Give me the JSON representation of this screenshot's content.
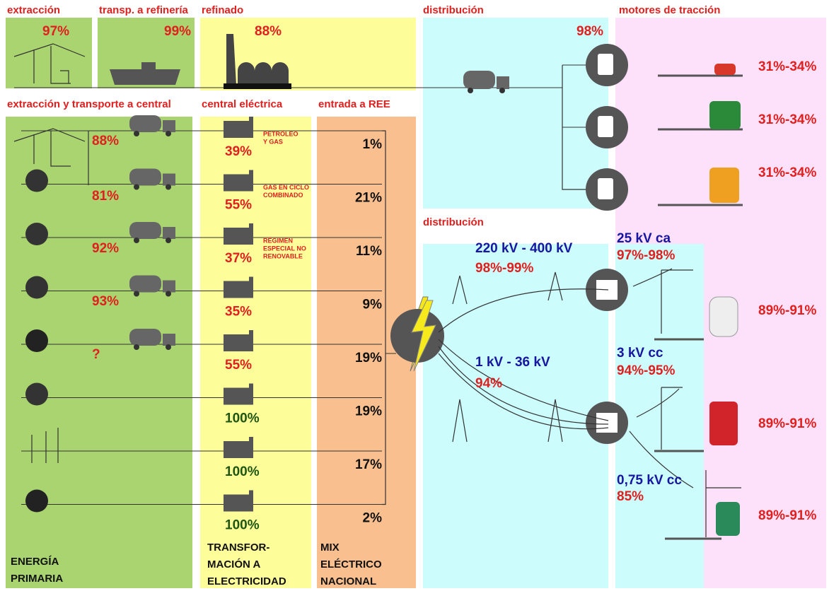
{
  "top": {
    "extraction": {
      "title": "extracción",
      "value": "97%"
    },
    "transport": {
      "title": "transp. a refinería",
      "value": "99%"
    },
    "refining": {
      "title": "refinado",
      "value": "88%"
    },
    "distribution": {
      "title": "distribución",
      "value": "98%"
    },
    "traction": {
      "title": "motores de tracción",
      "values": [
        "31%-34%",
        "31%-34%",
        "31%-34%"
      ]
    }
  },
  "electric": {
    "primary": {
      "title": "extracción y transporte a central",
      "values": [
        "88%",
        "81%",
        "92%",
        "93%",
        "?"
      ],
      "footer": [
        "ENERGÍA",
        "PRIMARIA"
      ]
    },
    "plants": {
      "title": "central eléctrica",
      "values": [
        "39%",
        "55%",
        "37%",
        "35%",
        "55%",
        "100%",
        "100%",
        "100%"
      ],
      "labels": [
        [
          "PETRÓLEO",
          "Y GAS"
        ],
        [
          "GAS EN CICLO",
          "COMBINADO"
        ],
        [
          "RÉGIMEN",
          "ESPECIAL NO",
          "RENOVABLE"
        ]
      ],
      "footer": [
        "TRANSFOR-",
        "MACIÓN A",
        "ELECTRICIDAD"
      ]
    },
    "ree": {
      "title": "entrada a REE",
      "values": [
        "1%",
        "21%",
        "11%",
        "9%",
        "19%",
        "19%",
        "17%",
        "2%"
      ],
      "footer": [
        "MIX",
        "ELÉCTRICO",
        "NACIONAL"
      ]
    },
    "distribution": {
      "title": "distribución",
      "lines": [
        {
          "voltage": "220 kV - 400 kV",
          "value": "98%-99%"
        },
        {
          "voltage": "1 kV - 36 kV",
          "value": "94%"
        }
      ]
    },
    "traction": {
      "systems": [
        {
          "voltage": "25 kV ca",
          "value": "97%-98%",
          "motor": "89%-91%"
        },
        {
          "voltage": "3 kV cc",
          "value": "94%-95%",
          "motor": "89%-91%"
        },
        {
          "voltage": "0,75 kV cc",
          "value": "85%",
          "motor": "89%-91%"
        }
      ]
    }
  }
}
